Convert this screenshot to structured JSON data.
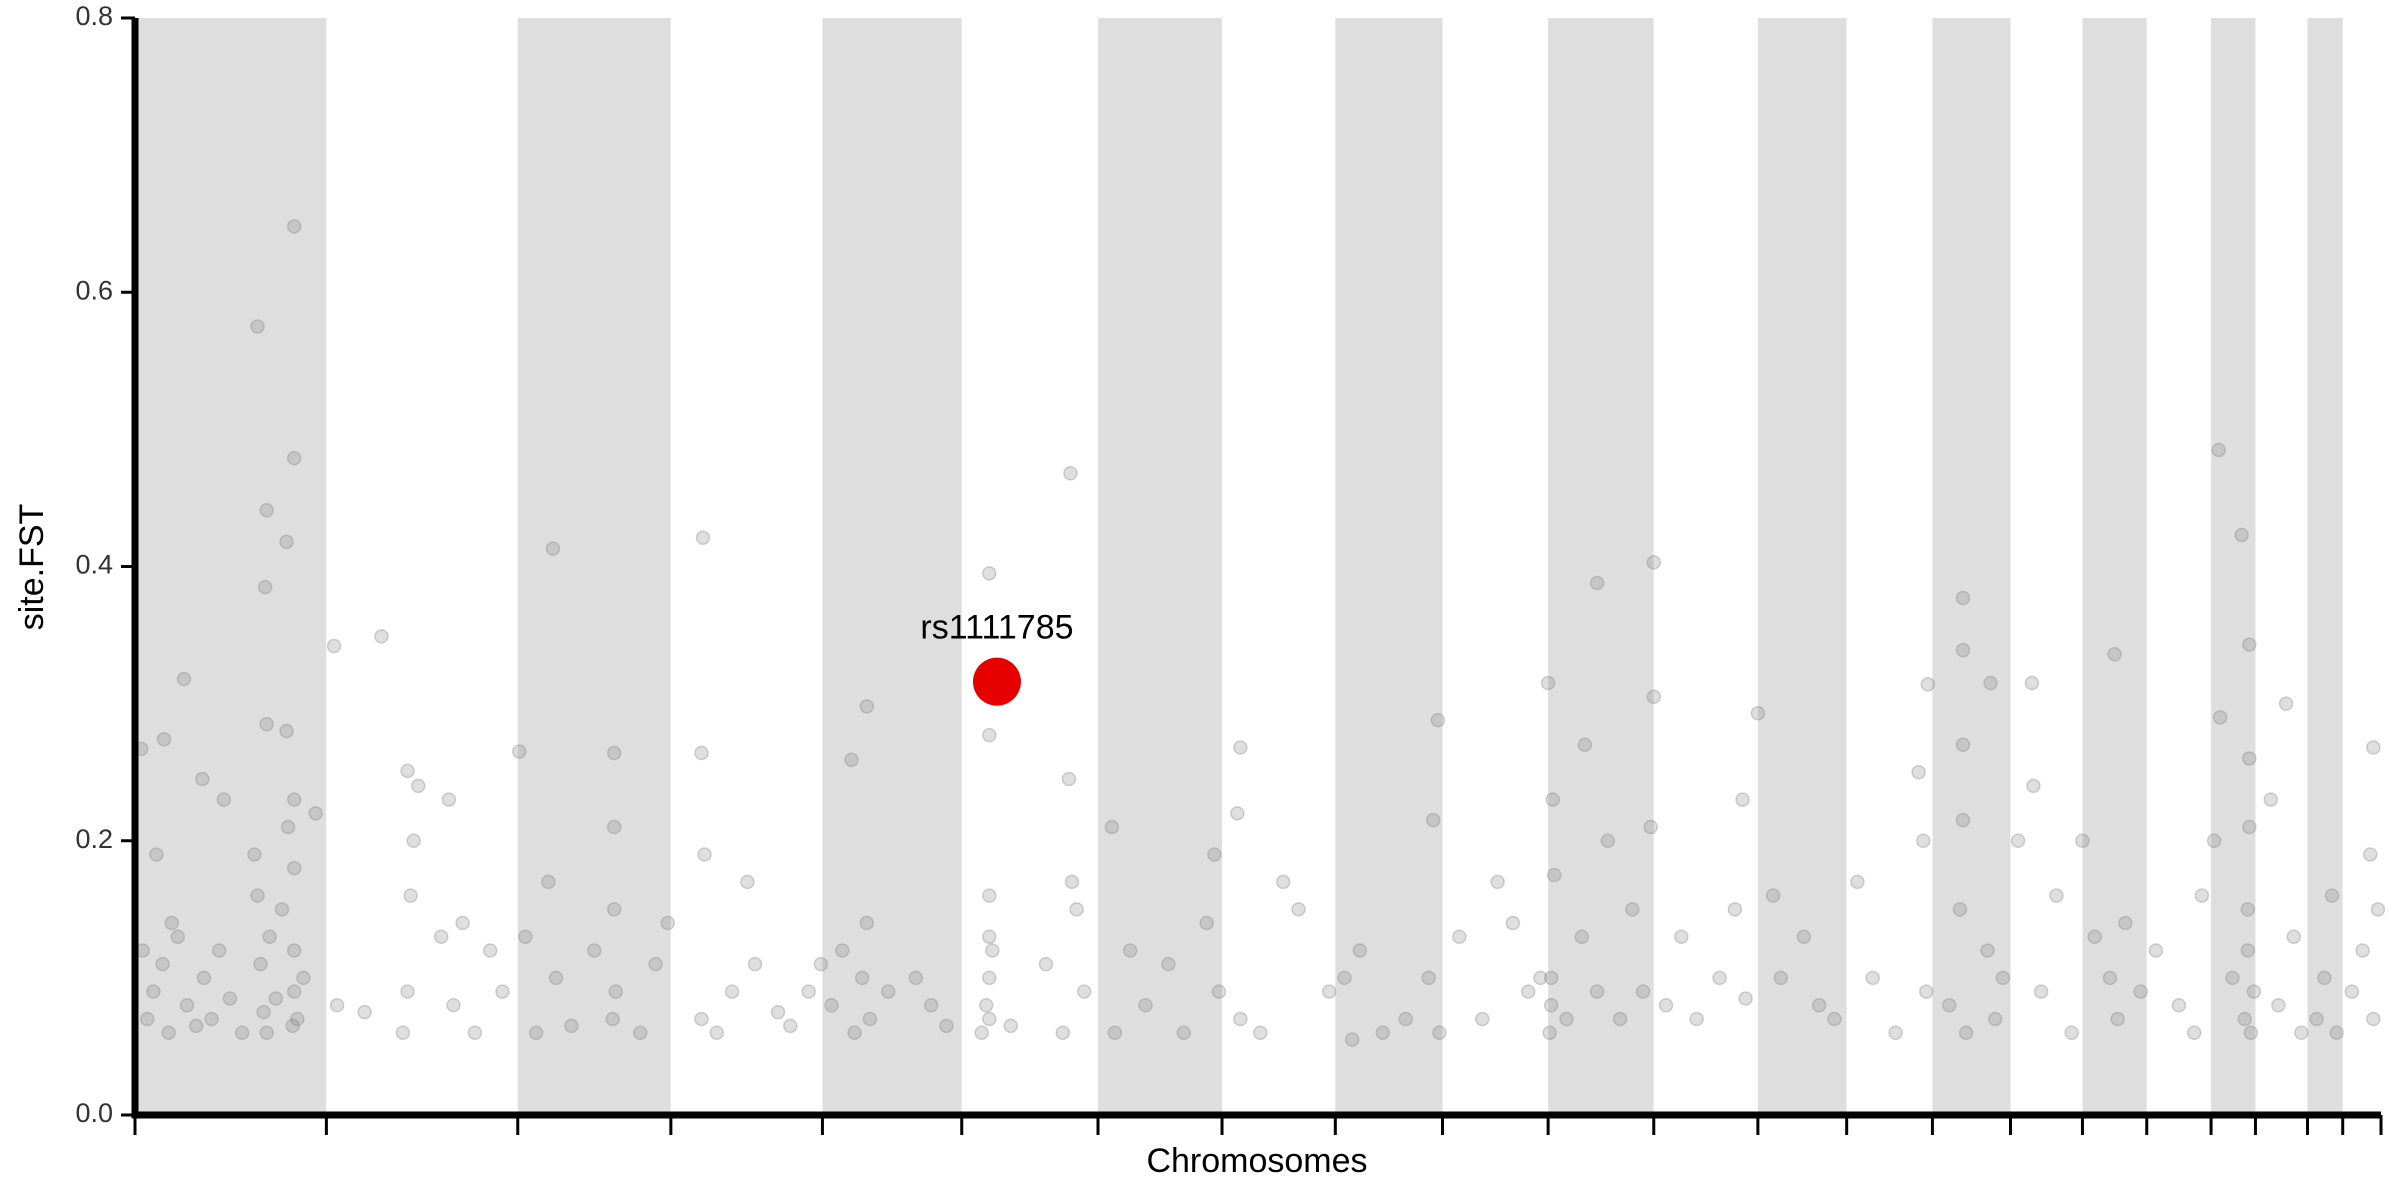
{
  "chart_data": {
    "type": "scatter",
    "x_label": "Chromosomes",
    "y_label": "site.FST",
    "xlim": [
      0,
      1467
    ],
    "ylim": [
      0,
      0.8
    ],
    "yticks": [
      {
        "value": 0,
        "label": "0.0"
      },
      0.2,
      0.4,
      0.6,
      0.8
    ],
    "chromosome_bounds": [
      0,
      125,
      250,
      350,
      449,
      540,
      629,
      710,
      784,
      854,
      923,
      992,
      1060,
      1118,
      1174,
      1225,
      1272,
      1314,
      1356,
      1385,
      1419,
      1442,
      1467
    ],
    "band_colors": [
      "#dedede",
      "#ffffff"
    ],
    "color": "#808080",
    "x": [
      80,
      104,
      104,
      86,
      99,
      85,
      86,
      99,
      32,
      19,
      4,
      161,
      130,
      273,
      371,
      611,
      558,
      558,
      478,
      992,
      955,
      1194,
      1194,
      1361,
      1376,
      1381,
      1293,
      923,
      851,
      1060,
      1212,
      1405,
      1462,
      178,
      251,
      313,
      370,
      468,
      722,
      947,
      1171,
      1239,
      5,
      8,
      12,
      18,
      22,
      28,
      34,
      40,
      45,
      50,
      55,
      62,
      70,
      78,
      80,
      82,
      84,
      86,
      88,
      92,
      96,
      100,
      103,
      104,
      104,
      104,
      104,
      106,
      110,
      118,
      14,
      24,
      44,
      58,
      132,
      150,
      175,
      178,
      180,
      182,
      185,
      200,
      205,
      208,
      214,
      222,
      232,
      240,
      255,
      262,
      270,
      275,
      285,
      300,
      312,
      313,
      313,
      314,
      330,
      340,
      348,
      370,
      372,
      380,
      390,
      400,
      405,
      420,
      428,
      440,
      448,
      455,
      462,
      470,
      475,
      478,
      480,
      492,
      510,
      520,
      530,
      553,
      556,
      558,
      558,
      558,
      558,
      560,
      572,
      595,
      606,
      610,
      612,
      615,
      620,
      638,
      640,
      650,
      660,
      675,
      685,
      700,
      705,
      708,
      720,
      722,
      735,
      750,
      760,
      780,
      790,
      795,
      800,
      815,
      830,
      845,
      852,
      848,
      865,
      880,
      890,
      900,
      910,
      918,
      924,
      925,
      925,
      926,
      927,
      935,
      945,
      955,
      962,
      970,
      978,
      985,
      990,
      992,
      1000,
      1010,
      1020,
      1035,
      1045,
      1050,
      1052,
      1070,
      1075,
      1090,
      1100,
      1110,
      1125,
      1135,
      1150,
      1165,
      1168,
      1170,
      1185,
      1192,
      1194,
      1194,
      1196,
      1210,
      1215,
      1220,
      1230,
      1240,
      1245,
      1255,
      1265,
      1272,
      1280,
      1290,
      1295,
      1300,
      1310,
      1320,
      1335,
      1345,
      1350,
      1358,
      1362,
      1370,
      1378,
      1380,
      1380,
      1381,
      1381,
      1382,
      1384,
      1395,
      1400,
      1410,
      1415,
      1425,
      1430,
      1435,
      1438,
      1448,
      1455,
      1460,
      1462,
      1465
    ],
    "values": [
      0.575,
      0.648,
      0.479,
      0.441,
      0.418,
      0.385,
      0.285,
      0.28,
      0.318,
      0.274,
      0.267,
      0.349,
      0.342,
      0.413,
      0.421,
      0.468,
      0.395,
      0.277,
      0.298,
      0.403,
      0.388,
      0.377,
      0.339,
      0.485,
      0.423,
      0.343,
      0.336,
      0.315,
      0.288,
      0.293,
      0.315,
      0.3,
      0.268,
      0.251,
      0.265,
      0.264,
      0.264,
      0.259,
      0.268,
      0.27,
      0.314,
      0.315,
      0.12,
      0.07,
      0.09,
      0.11,
      0.06,
      0.13,
      0.08,
      0.065,
      0.1,
      0.07,
      0.12,
      0.085,
      0.06,
      0.19,
      0.16,
      0.11,
      0.075,
      0.06,
      0.13,
      0.085,
      0.15,
      0.21,
      0.065,
      0.09,
      0.12,
      0.18,
      0.23,
      0.07,
      0.1,
      0.22,
      0.19,
      0.14,
      0.245,
      0.23,
      0.08,
      0.075,
      0.06,
      0.09,
      0.16,
      0.2,
      0.24,
      0.13,
      0.23,
      0.08,
      0.14,
      0.06,
      0.12,
      0.09,
      0.13,
      0.06,
      0.17,
      0.1,
      0.065,
      0.12,
      0.07,
      0.15,
      0.21,
      0.09,
      0.06,
      0.11,
      0.14,
      0.07,
      0.19,
      0.06,
      0.09,
      0.17,
      0.11,
      0.075,
      0.065,
      0.09,
      0.11,
      0.08,
      0.12,
      0.06,
      0.1,
      0.14,
      0.07,
      0.09,
      0.1,
      0.08,
      0.065,
      0.06,
      0.08,
      0.1,
      0.13,
      0.16,
      0.07,
      0.12,
      0.065,
      0.11,
      0.06,
      0.245,
      0.17,
      0.15,
      0.09,
      0.21,
      0.06,
      0.12,
      0.08,
      0.11,
      0.06,
      0.14,
      0.19,
      0.09,
      0.22,
      0.07,
      0.06,
      0.17,
      0.15,
      0.09,
      0.1,
      0.055,
      0.12,
      0.06,
      0.07,
      0.1,
      0.06,
      0.215,
      0.13,
      0.07,
      0.17,
      0.14,
      0.09,
      0.1,
      0.06,
      0.08,
      0.1,
      0.23,
      0.175,
      0.07,
      0.13,
      0.09,
      0.2,
      0.07,
      0.15,
      0.09,
      0.21,
      0.305,
      0.08,
      0.13,
      0.07,
      0.1,
      0.15,
      0.23,
      0.085,
      0.16,
      0.1,
      0.13,
      0.08,
      0.07,
      0.17,
      0.1,
      0.06,
      0.25,
      0.2,
      0.09,
      0.08,
      0.15,
      0.27,
      0.215,
      0.06,
      0.12,
      0.07,
      0.1,
      0.2,
      0.24,
      0.09,
      0.16,
      0.06,
      0.2,
      0.13,
      0.1,
      0.07,
      0.14,
      0.09,
      0.12,
      0.08,
      0.06,
      0.16,
      0.2,
      0.29,
      0.1,
      0.07,
      0.12,
      0.15,
      0.21,
      0.26,
      0.06,
      0.09,
      0.23,
      0.08,
      0.13,
      0.06,
      0.07,
      0.1,
      0.16,
      0.06,
      0.09,
      0.12,
      0.19,
      0.07,
      0.15
    ],
    "highlight": {
      "label": "rs1111785",
      "x": 563,
      "value": 0.316,
      "color": "#e60000"
    }
  }
}
